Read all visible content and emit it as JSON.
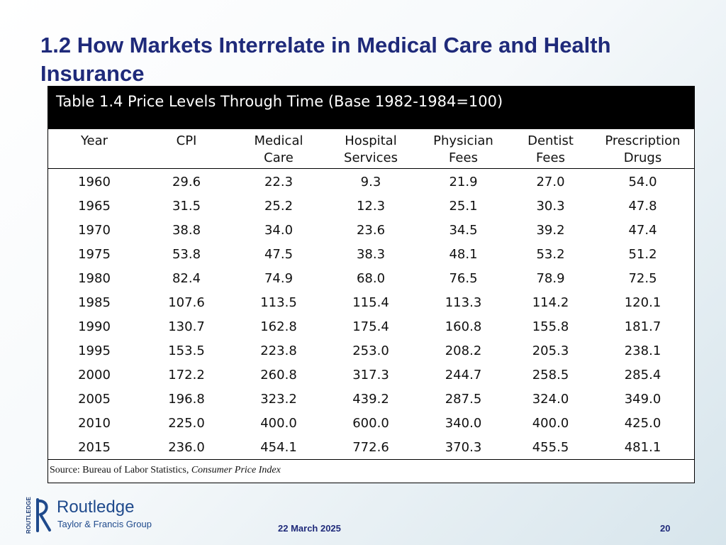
{
  "slide": {
    "title": "1.2  How Markets Interrelate in Medical Care and Health Insurance"
  },
  "table": {
    "caption": "Table 1.4  Price Levels Through Time (Base 1982-1984=100)",
    "headers": [
      [
        "Year",
        ""
      ],
      [
        "CPI",
        ""
      ],
      [
        "Medical",
        "Care"
      ],
      [
        "Hospital",
        "Services"
      ],
      [
        "Physician",
        "Fees"
      ],
      [
        "Dentist",
        "Fees"
      ],
      [
        "Prescription",
        "Drugs"
      ]
    ],
    "rows": [
      [
        "1960",
        "29.6",
        "22.3",
        "9.3",
        "21.9",
        "27.0",
        "54.0"
      ],
      [
        "1965",
        "31.5",
        "25.2",
        "12.3",
        "25.1",
        "30.3",
        "47.8"
      ],
      [
        "1970",
        "38.8",
        "34.0",
        "23.6",
        "34.5",
        "39.2",
        "47.4"
      ],
      [
        "1975",
        "53.8",
        "47.5",
        "38.3",
        "48.1",
        "53.2",
        "51.2"
      ],
      [
        "1980",
        "82.4",
        "74.9",
        "68.0",
        "76.5",
        "78.9",
        "72.5"
      ],
      [
        "1985",
        "107.6",
        "113.5",
        "115.4",
        "113.3",
        "114.2",
        "120.1"
      ],
      [
        "1990",
        "130.7",
        "162.8",
        "175.4",
        "160.8",
        "155.8",
        "181.7"
      ],
      [
        "1995",
        "153.5",
        "223.8",
        "253.0",
        "208.2",
        "205.3",
        "238.1"
      ],
      [
        "2000",
        "172.2",
        "260.8",
        "317.3",
        "244.7",
        "258.5",
        "285.4"
      ],
      [
        "2005",
        "196.8",
        "323.2",
        "439.2",
        "287.5",
        "324.0",
        "349.0"
      ],
      [
        "2010",
        "225.0",
        "400.0",
        "600.0",
        "340.0",
        "400.0",
        "425.0"
      ],
      [
        "2015",
        "236.0",
        "454.1",
        "772.6",
        "370.3",
        "455.5",
        "481.1"
      ]
    ],
    "source_prefix": "Source:  Bureau of Labor Statistics, ",
    "source_title": "Consumer Price Index"
  },
  "logo": {
    "name": "Routledge",
    "subtitle": "Taylor & Francis Group",
    "side_text": "ROUTLEDGE"
  },
  "footer": {
    "date": "22 March 2025",
    "page": "20"
  },
  "colors": {
    "title": "#1f2a7a",
    "logo_blue": "#1f4a8c"
  }
}
